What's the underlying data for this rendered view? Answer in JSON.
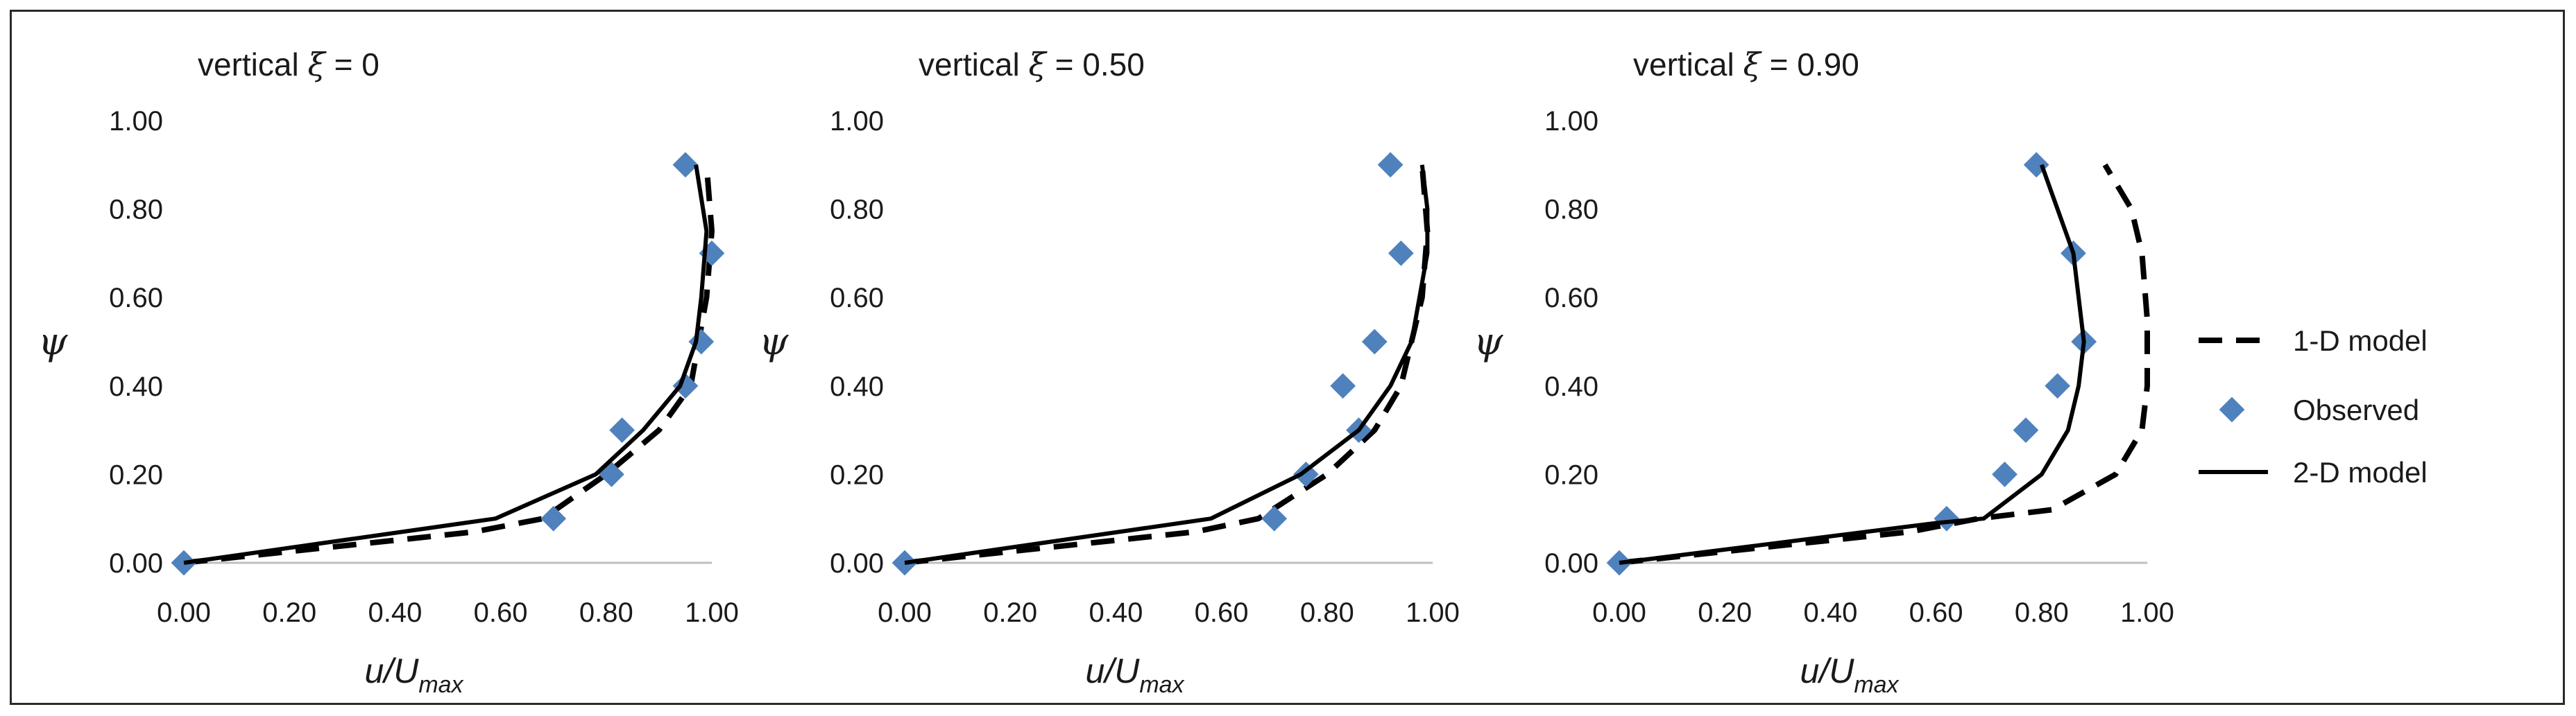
{
  "colors": {
    "marker": "#4f81bd",
    "line": "#000000",
    "axis": "#bfbfbf"
  },
  "legend": [
    {
      "label": "1-D model",
      "style": "dashed"
    },
    {
      "label": "Observed",
      "style": "marker"
    },
    {
      "label": "2-D model",
      "style": "solid"
    }
  ],
  "chart_data": [
    {
      "type": "line",
      "title_prefix": "vertical",
      "title_symbol": "ξ",
      "title_value": "= 0",
      "xlabel": "u/U",
      "xlabel_sub": "max",
      "ylabel": "ψ",
      "xlim": [
        0,
        1
      ],
      "ylim": [
        0,
        1
      ],
      "xticks": [
        "0.00",
        "0.20",
        "0.40",
        "0.60",
        "0.80",
        "1.00"
      ],
      "yticks": [
        "0.00",
        "0.20",
        "0.40",
        "0.60",
        "0.80",
        "1.00"
      ],
      "series": [
        {
          "name": "1-D model",
          "style": "dashed",
          "x": [
            0.0,
            0.55,
            0.68,
            0.8,
            0.9,
            0.96,
            0.99,
            1.0,
            0.99
          ],
          "y": [
            0.0,
            0.07,
            0.1,
            0.2,
            0.3,
            0.4,
            0.6,
            0.75,
            0.9
          ]
        },
        {
          "name": "Observed",
          "style": "marker",
          "x": [
            0.0,
            0.7,
            0.81,
            0.83,
            0.95,
            0.98,
            1.0,
            0.95
          ],
          "y": [
            0.0,
            0.1,
            0.2,
            0.3,
            0.4,
            0.5,
            0.7,
            0.9
          ]
        },
        {
          "name": "2-D model",
          "style": "solid",
          "x": [
            0.0,
            0.59,
            0.78,
            0.87,
            0.94,
            0.97,
            0.98,
            0.99,
            0.97
          ],
          "y": [
            0.0,
            0.1,
            0.2,
            0.3,
            0.4,
            0.5,
            0.6,
            0.75,
            0.9
          ]
        }
      ]
    },
    {
      "type": "line",
      "title_prefix": "vertical",
      "title_symbol": "ξ",
      "title_value": "= 0.50",
      "xlabel": "u/U",
      "xlabel_sub": "max",
      "ylabel": "ψ",
      "xlim": [
        0,
        1
      ],
      "ylim": [
        0,
        1
      ],
      "xticks": [
        "0.00",
        "0.20",
        "0.40",
        "0.60",
        "0.80",
        "1.00"
      ],
      "yticks": [
        "0.00",
        "0.20",
        "0.40",
        "0.60",
        "0.80",
        "1.00"
      ],
      "series": [
        {
          "name": "1-D model",
          "style": "dashed",
          "x": [
            0.0,
            0.55,
            0.67,
            0.8,
            0.89,
            0.94,
            0.98,
            0.99,
            0.98
          ],
          "y": [
            0.0,
            0.07,
            0.1,
            0.2,
            0.3,
            0.4,
            0.6,
            0.75,
            0.9
          ]
        },
        {
          "name": "Observed",
          "style": "marker",
          "x": [
            0.0,
            0.7,
            0.76,
            0.86,
            0.83,
            0.89,
            0.94,
            0.92
          ],
          "y": [
            0.0,
            0.1,
            0.2,
            0.3,
            0.4,
            0.5,
            0.7,
            0.9
          ]
        },
        {
          "name": "2-D model",
          "style": "solid",
          "x": [
            0.0,
            0.58,
            0.75,
            0.86,
            0.92,
            0.96,
            0.99,
            0.99,
            0.98
          ],
          "y": [
            0.0,
            0.1,
            0.2,
            0.3,
            0.4,
            0.5,
            0.7,
            0.8,
            0.9
          ]
        }
      ]
    },
    {
      "type": "line",
      "title_prefix": "vertical",
      "title_symbol": "ξ",
      "title_value": "= 0.90",
      "xlabel": "u/U",
      "xlabel_sub": "max",
      "ylabel": "ψ",
      "xlim": [
        0,
        1
      ],
      "ylim": [
        0,
        1
      ],
      "xticks": [
        "0.00",
        "0.20",
        "0.40",
        "0.60",
        "0.80",
        "1.00"
      ],
      "yticks": [
        "0.00",
        "0.20",
        "0.40",
        "0.60",
        "0.80",
        "1.00"
      ],
      "series": [
        {
          "name": "1-D model",
          "style": "dashed",
          "x": [
            0.0,
            0.55,
            0.68,
            0.82,
            0.94,
            0.99,
            1.0,
            1.0,
            0.99,
            0.97,
            0.92
          ],
          "y": [
            0.0,
            0.07,
            0.1,
            0.12,
            0.2,
            0.3,
            0.4,
            0.55,
            0.7,
            0.8,
            0.9
          ]
        },
        {
          "name": "Observed",
          "style": "marker",
          "x": [
            0.0,
            0.62,
            0.73,
            0.77,
            0.83,
            0.88,
            0.86,
            0.79
          ],
          "y": [
            0.0,
            0.1,
            0.2,
            0.3,
            0.4,
            0.5,
            0.7,
            0.9
          ]
        },
        {
          "name": "2-D model",
          "style": "solid",
          "x": [
            0.0,
            0.6,
            0.69,
            0.8,
            0.85,
            0.87,
            0.88,
            0.86,
            0.8
          ],
          "y": [
            0.0,
            0.09,
            0.1,
            0.2,
            0.3,
            0.4,
            0.5,
            0.7,
            0.9
          ]
        }
      ]
    }
  ]
}
